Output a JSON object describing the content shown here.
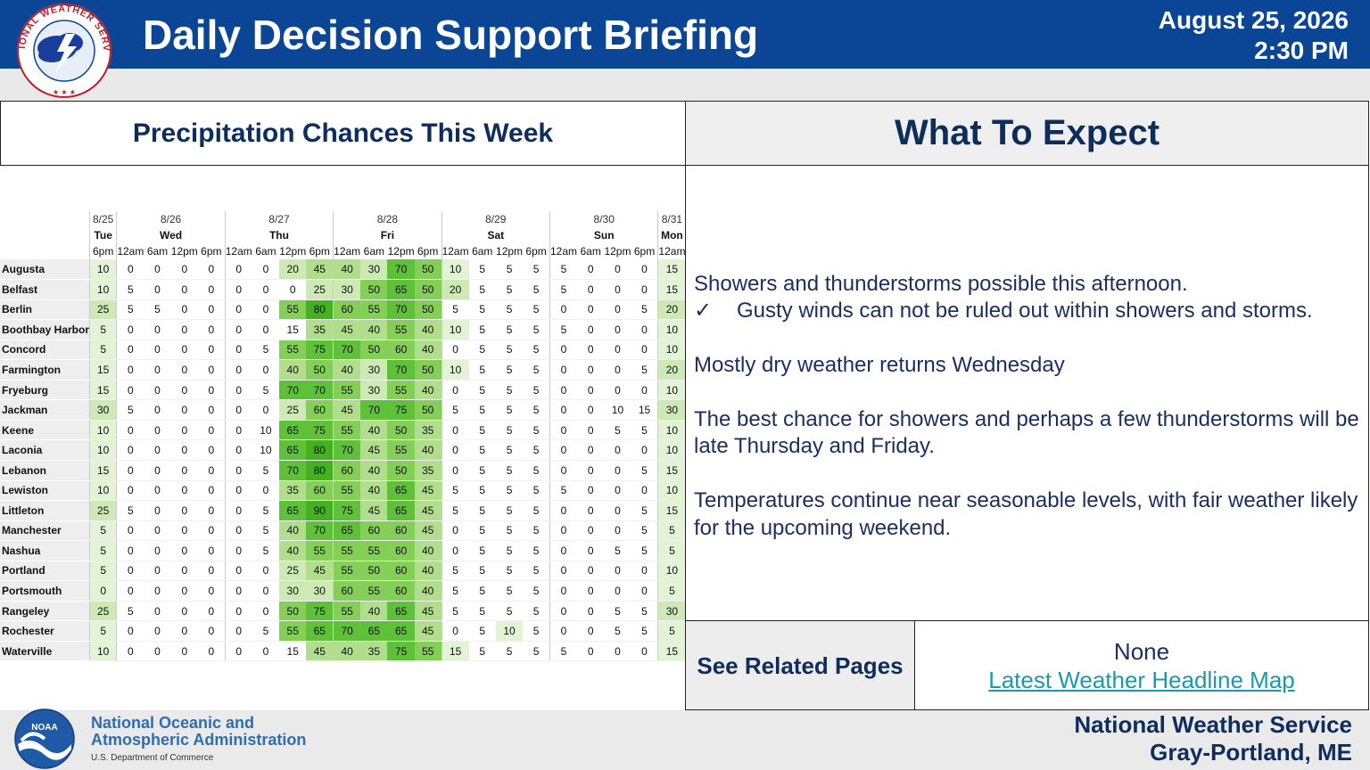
{
  "header": {
    "title": "Daily Decision Support Briefing",
    "date": "August 25, 2026",
    "time": "2:30 PM",
    "logo_text": "NATIONAL WEATHER SERVICE",
    "color": "#0b4596"
  },
  "precip": {
    "title": "Precipitation Chances This Week",
    "days": [
      {
        "date": "8/25",
        "day": "Tue",
        "times": [
          "6pm"
        ]
      },
      {
        "date": "8/26",
        "day": "Wed",
        "times": [
          "12am",
          "6am",
          "12pm",
          "6pm"
        ]
      },
      {
        "date": "8/27",
        "day": "Thu",
        "times": [
          "12am",
          "6am",
          "12pm",
          "6pm"
        ]
      },
      {
        "date": "8/28",
        "day": "Fri",
        "times": [
          "12am",
          "6am",
          "12pm",
          "6pm"
        ]
      },
      {
        "date": "8/29",
        "day": "Sat",
        "times": [
          "12am",
          "6am",
          "12pm",
          "6pm"
        ]
      },
      {
        "date": "8/30",
        "day": "Sun",
        "times": [
          "12am",
          "6am",
          "12pm",
          "6pm"
        ]
      },
      {
        "date": "8/31",
        "day": "Mon",
        "times": [
          "12am"
        ]
      }
    ],
    "rows": [
      {
        "city": "Augusta",
        "values": [
          10,
          0,
          0,
          0,
          0,
          0,
          0,
          20,
          45,
          40,
          30,
          70,
          50,
          10,
          5,
          5,
          5,
          5,
          0,
          0,
          0,
          15
        ]
      },
      {
        "city": "Belfast",
        "values": [
          10,
          5,
          0,
          0,
          0,
          0,
          0,
          0,
          25,
          30,
          50,
          65,
          50,
          20,
          5,
          5,
          5,
          5,
          0,
          0,
          0,
          15
        ]
      },
      {
        "city": "Berlin",
        "values": [
          25,
          5,
          5,
          0,
          0,
          0,
          0,
          55,
          80,
          60,
          55,
          70,
          50,
          5,
          5,
          5,
          5,
          0,
          0,
          0,
          5,
          20
        ]
      },
      {
        "city": "Boothbay Harbor",
        "values": [
          5,
          0,
          0,
          0,
          0,
          0,
          0,
          15,
          35,
          45,
          40,
          55,
          40,
          10,
          5,
          5,
          5,
          5,
          0,
          0,
          0,
          10
        ]
      },
      {
        "city": "Concord",
        "values": [
          5,
          0,
          0,
          0,
          0,
          0,
          5,
          55,
          75,
          70,
          50,
          60,
          40,
          0,
          5,
          5,
          5,
          0,
          0,
          0,
          0,
          10
        ]
      },
      {
        "city": "Farmington",
        "values": [
          15,
          0,
          0,
          0,
          0,
          0,
          0,
          40,
          50,
          40,
          30,
          70,
          50,
          10,
          5,
          5,
          5,
          0,
          0,
          0,
          5,
          20
        ]
      },
      {
        "city": "Fryeburg",
        "values": [
          15,
          0,
          0,
          0,
          0,
          0,
          5,
          70,
          70,
          55,
          30,
          55,
          40,
          0,
          5,
          5,
          5,
          0,
          0,
          0,
          0,
          10
        ]
      },
      {
        "city": "Jackman",
        "values": [
          30,
          5,
          0,
          0,
          0,
          0,
          0,
          25,
          60,
          45,
          70,
          75,
          50,
          5,
          5,
          5,
          5,
          0,
          0,
          10,
          15,
          30
        ]
      },
      {
        "city": "Keene",
        "values": [
          10,
          0,
          0,
          0,
          0,
          0,
          10,
          65,
          75,
          55,
          40,
          50,
          35,
          0,
          5,
          5,
          5,
          0,
          0,
          5,
          5,
          10
        ]
      },
      {
        "city": "Laconia",
        "values": [
          10,
          0,
          0,
          0,
          0,
          0,
          10,
          65,
          80,
          70,
          45,
          55,
          40,
          0,
          5,
          5,
          5,
          0,
          0,
          0,
          0,
          10
        ]
      },
      {
        "city": "Lebanon",
        "values": [
          15,
          0,
          0,
          0,
          0,
          0,
          5,
          70,
          80,
          60,
          40,
          50,
          35,
          0,
          5,
          5,
          5,
          0,
          0,
          0,
          5,
          15
        ]
      },
      {
        "city": "Lewiston",
        "values": [
          10,
          0,
          0,
          0,
          0,
          0,
          0,
          35,
          60,
          55,
          40,
          65,
          45,
          5,
          5,
          5,
          5,
          5,
          0,
          0,
          0,
          10
        ]
      },
      {
        "city": "Littleton",
        "values": [
          25,
          5,
          0,
          0,
          0,
          0,
          5,
          65,
          90,
          75,
          45,
          65,
          45,
          5,
          5,
          5,
          5,
          0,
          0,
          0,
          5,
          15
        ]
      },
      {
        "city": "Manchester",
        "values": [
          5,
          0,
          0,
          0,
          0,
          0,
          5,
          40,
          70,
          65,
          60,
          60,
          45,
          0,
          5,
          5,
          5,
          0,
          0,
          0,
          5,
          5
        ]
      },
      {
        "city": "Nashua",
        "values": [
          5,
          0,
          0,
          0,
          0,
          0,
          5,
          40,
          55,
          55,
          55,
          60,
          40,
          0,
          5,
          5,
          5,
          0,
          0,
          5,
          5,
          5
        ]
      },
      {
        "city": "Portland",
        "values": [
          5,
          0,
          0,
          0,
          0,
          0,
          0,
          25,
          45,
          55,
          50,
          60,
          40,
          5,
          5,
          5,
          5,
          0,
          0,
          0,
          0,
          10
        ]
      },
      {
        "city": "Portsmouth",
        "values": [
          0,
          0,
          0,
          0,
          0,
          0,
          0,
          30,
          30,
          60,
          55,
          60,
          40,
          5,
          5,
          5,
          5,
          0,
          0,
          0,
          0,
          5
        ]
      },
      {
        "city": "Rangeley",
        "values": [
          25,
          5,
          0,
          0,
          0,
          0,
          0,
          50,
          75,
          55,
          40,
          65,
          45,
          5,
          5,
          5,
          5,
          0,
          0,
          5,
          5,
          30
        ]
      },
      {
        "city": "Rochester",
        "values": [
          5,
          0,
          0,
          0,
          0,
          0,
          5,
          55,
          65,
          70,
          65,
          65,
          45,
          0,
          5,
          10,
          5,
          0,
          0,
          5,
          5,
          5
        ]
      },
      {
        "city": "Waterville",
        "values": [
          10,
          0,
          0,
          0,
          0,
          0,
          0,
          15,
          45,
          40,
          35,
          75,
          55,
          15,
          5,
          5,
          5,
          5,
          0,
          0,
          0,
          15
        ]
      }
    ],
    "colors": {
      "c5_15": "#e3f3d6",
      "c20_30": "#cdeab4",
      "c35_45": "#b1de8c",
      "c50_60": "#84cf58",
      "c65_75": "#5fc13a",
      "c80_90": "#45b020"
    }
  },
  "expect": {
    "title": "What To Expect",
    "line1": "Showers and thunderstorms possible this afternoon.",
    "check_symbol": "✓",
    "line2": "Gusty winds can not be ruled out within showers and storms.",
    "line3": "Mostly dry weather returns Wednesday",
    "line4": "The best chance for showers and perhaps a few thunderstorms will be late Thursday and Friday.",
    "line5": "Temperatures continue near seasonable levels, with fair weather likely for the upcoming weekend."
  },
  "related": {
    "label": "See Related Pages",
    "none_text": "None",
    "link_text": "Latest Weather Headline Map"
  },
  "footer": {
    "noaa_line1": "National Oceanic and",
    "noaa_line2": "Atmospheric Administration",
    "noaa_dept": "U.S. Department of Commerce",
    "noaa_logo_text": "NOAA",
    "office_line1": "National Weather Service",
    "office_line2": "Gray-Portland, ME"
  }
}
